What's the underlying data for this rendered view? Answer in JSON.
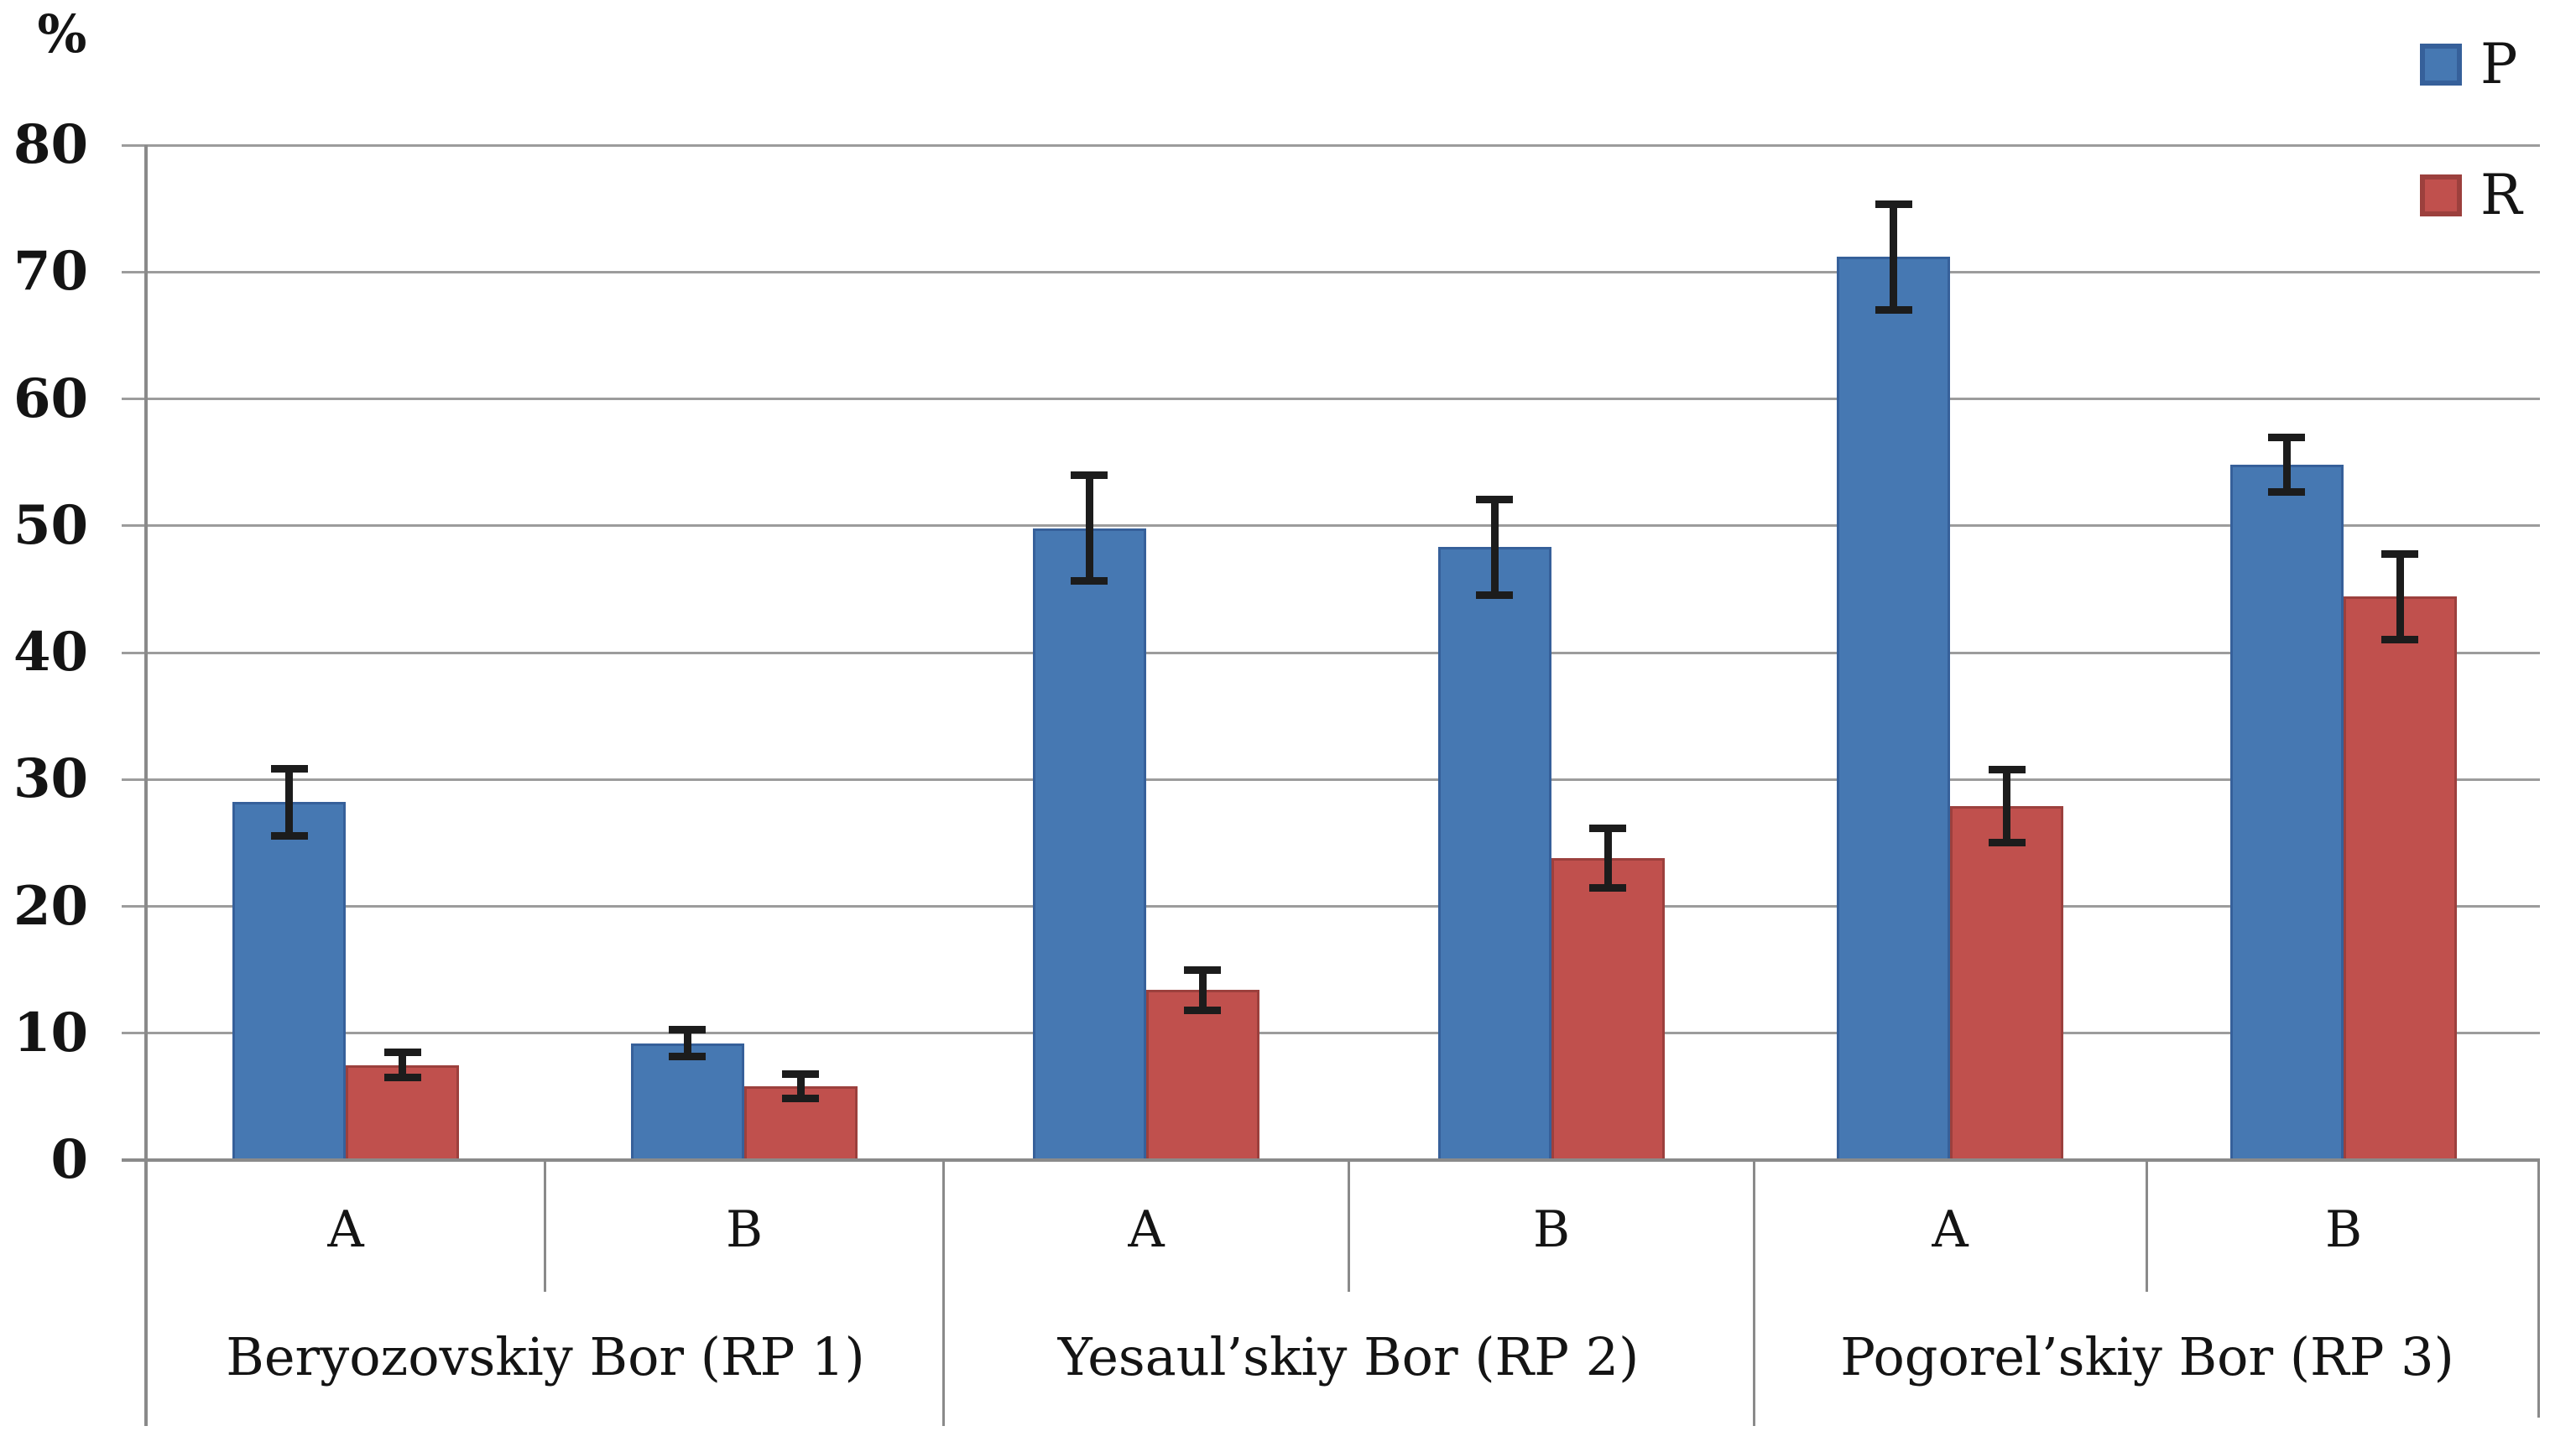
{
  "chart_data": {
    "type": "bar",
    "title": "",
    "ylabel": "%",
    "xlabel": "",
    "ylim": [
      0,
      80
    ],
    "yticks": [
      0,
      10,
      20,
      30,
      40,
      50,
      60,
      70,
      80
    ],
    "grid": true,
    "legend_position": "top-right",
    "series": [
      {
        "name": "P",
        "color": "#4678B2",
        "border_color": "#36609A"
      },
      {
        "name": "R",
        "color": "#C0504D",
        "border_color": "#9C403D"
      }
    ],
    "groups": [
      {
        "label": "Beryozovskiy Bor (RP 1)",
        "subgroups": [
          {
            "label": "A",
            "values": {
              "P": 28.2,
              "R": 7.5
            },
            "errors": {
              "P": 2.5,
              "R": 0.8
            }
          },
          {
            "label": "B",
            "values": {
              "P": 9.2,
              "R": 5.8
            },
            "errors": {
              "P": 0.9,
              "R": 0.8
            }
          }
        ]
      },
      {
        "label": "Yesaul’skiy Bor (RP 2)",
        "subgroups": [
          {
            "label": "A",
            "values": {
              "P": 49.8,
              "R": 13.4
            },
            "errors": {
              "P": 4.0,
              "R": 1.4
            }
          },
          {
            "label": "B",
            "values": {
              "P": 48.3,
              "R": 23.8
            },
            "errors": {
              "P": 3.6,
              "R": 2.2
            }
          }
        ]
      },
      {
        "label": "Pogorel’skiy Bor (RP 3)",
        "subgroups": [
          {
            "label": "A",
            "values": {
              "P": 71.2,
              "R": 27.9
            },
            "errors": {
              "P": 4.0,
              "R": 2.7
            }
          },
          {
            "label": "B",
            "values": {
              "P": 54.8,
              "R": 44.4
            },
            "errors": {
              "P": 2.0,
              "R": 3.2
            }
          }
        ]
      }
    ],
    "colors": {
      "gridline": "#9C9C9C",
      "axis": "#8A8A8A",
      "error_bar": "#1C1C1C",
      "text": "#141414",
      "background": "#FFFFFF"
    }
  }
}
